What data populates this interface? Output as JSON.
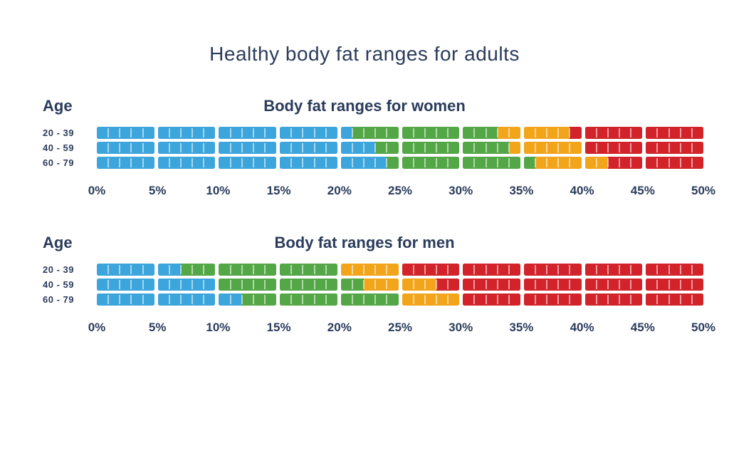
{
  "title": "Healthy body fat ranges for adults",
  "colors": {
    "blue": "#3CA5DB",
    "green": "#54A746",
    "orange": "#F2A51B",
    "red": "#D2232A",
    "navy": "#2A3B5B",
    "background": "#FFFFFF"
  },
  "chart_data": [
    {
      "type": "bar",
      "title": "Body fat ranges for women",
      "age_label": "Age",
      "unit": "%",
      "xlim": [
        0,
        50
      ],
      "axis_ticks": [
        "0%",
        "5%",
        "10%",
        "15%",
        "20%",
        "25%",
        "30%",
        "35%",
        "40%",
        "45%",
        "50%"
      ],
      "rows": [
        {
          "age": "20 - 39",
          "segments": [
            {
              "from": 0,
              "to": 21,
              "color": "blue"
            },
            {
              "from": 21,
              "to": 33,
              "color": "green"
            },
            {
              "from": 33,
              "to": 39,
              "color": "orange"
            },
            {
              "from": 39,
              "to": 50,
              "color": "red"
            }
          ]
        },
        {
          "age": "40 - 59",
          "segments": [
            {
              "from": 0,
              "to": 23,
              "color": "blue"
            },
            {
              "from": 23,
              "to": 34,
              "color": "green"
            },
            {
              "from": 34,
              "to": 40,
              "color": "orange"
            },
            {
              "from": 40,
              "to": 50,
              "color": "red"
            }
          ]
        },
        {
          "age": "60 - 79",
          "segments": [
            {
              "from": 0,
              "to": 24,
              "color": "blue"
            },
            {
              "from": 24,
              "to": 36,
              "color": "green"
            },
            {
              "from": 36,
              "to": 42,
              "color": "orange"
            },
            {
              "from": 42,
              "to": 50,
              "color": "red"
            }
          ]
        }
      ]
    },
    {
      "type": "bar",
      "title": "Body fat ranges for men",
      "age_label": "Age",
      "unit": "%",
      "xlim": [
        0,
        50
      ],
      "axis_ticks": [
        "0%",
        "5%",
        "10%",
        "15%",
        "20%",
        "25%",
        "30%",
        "35%",
        "40%",
        "45%",
        "50%"
      ],
      "rows": [
        {
          "age": "20 - 39",
          "segments": [
            {
              "from": 0,
              "to": 7,
              "color": "blue"
            },
            {
              "from": 7,
              "to": 20,
              "color": "green"
            },
            {
              "from": 20,
              "to": 25,
              "color": "orange"
            },
            {
              "from": 25,
              "to": 50,
              "color": "red"
            }
          ]
        },
        {
          "age": "40 - 59",
          "segments": [
            {
              "from": 0,
              "to": 10,
              "color": "blue"
            },
            {
              "from": 10,
              "to": 22,
              "color": "green"
            },
            {
              "from": 22,
              "to": 28,
              "color": "orange"
            },
            {
              "from": 28,
              "to": 50,
              "color": "red"
            }
          ]
        },
        {
          "age": "60 - 79",
          "segments": [
            {
              "from": 0,
              "to": 12,
              "color": "blue"
            },
            {
              "from": 12,
              "to": 25,
              "color": "green"
            },
            {
              "from": 25,
              "to": 30,
              "color": "orange"
            },
            {
              "from": 30,
              "to": 50,
              "color": "red"
            }
          ]
        }
      ]
    }
  ]
}
